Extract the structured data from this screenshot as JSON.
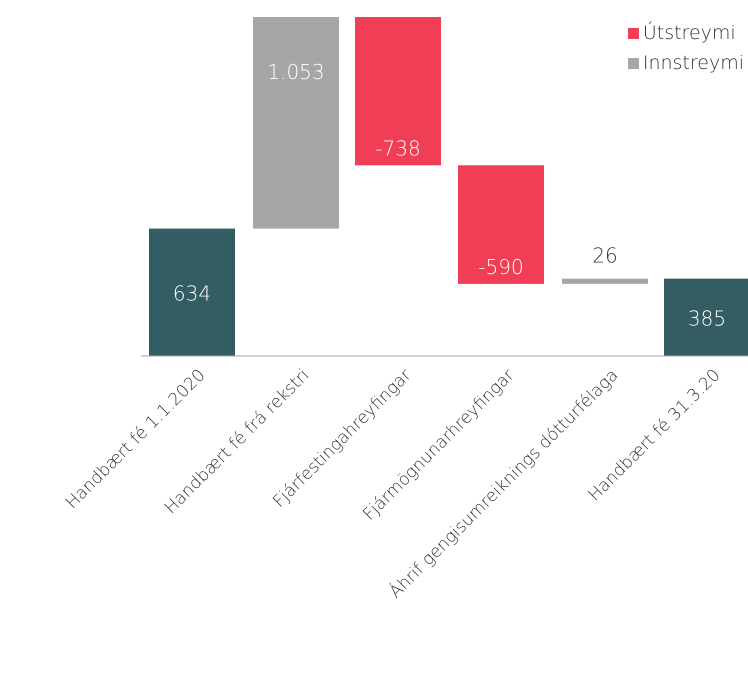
{
  "chart_data": {
    "type": "bar",
    "subtype": "waterfall",
    "title": "",
    "xlabel": "",
    "ylabel": "",
    "ylim": [
      0,
      1687
    ],
    "categories": [
      "Handbært fé 1.1.2020",
      "Handbært fé frá rekstri",
      "Fjárfestingahreyfingar",
      "Fjármögnunarhreyfingar",
      "Áhrif gengisumreiknings dótturfélaga",
      "Handbært fé 31.3.20"
    ],
    "steps": [
      {
        "kind": "total",
        "value": 634,
        "label": "634"
      },
      {
        "kind": "inflow",
        "value": 1053,
        "label": "1.053"
      },
      {
        "kind": "outflow",
        "value": -738,
        "label": "-738"
      },
      {
        "kind": "outflow",
        "value": -590,
        "label": "-590"
      },
      {
        "kind": "inflow",
        "value": 26,
        "label": "26"
      },
      {
        "kind": "total",
        "value": 385,
        "label": "385"
      }
    ],
    "legend": [
      {
        "name": "Útstreymi",
        "color": "#EF3E55"
      },
      {
        "name": "Innstreymi",
        "color": "#A6A6A6"
      }
    ],
    "legend_position": "top-right",
    "grid": false
  },
  "colors": {
    "total": "#345D63",
    "inflow": "#A6A6A6",
    "outflow": "#EF3E55",
    "axis": "#A6A6A6",
    "text": "#333333",
    "label_on_bar": "#FFFFFF"
  }
}
